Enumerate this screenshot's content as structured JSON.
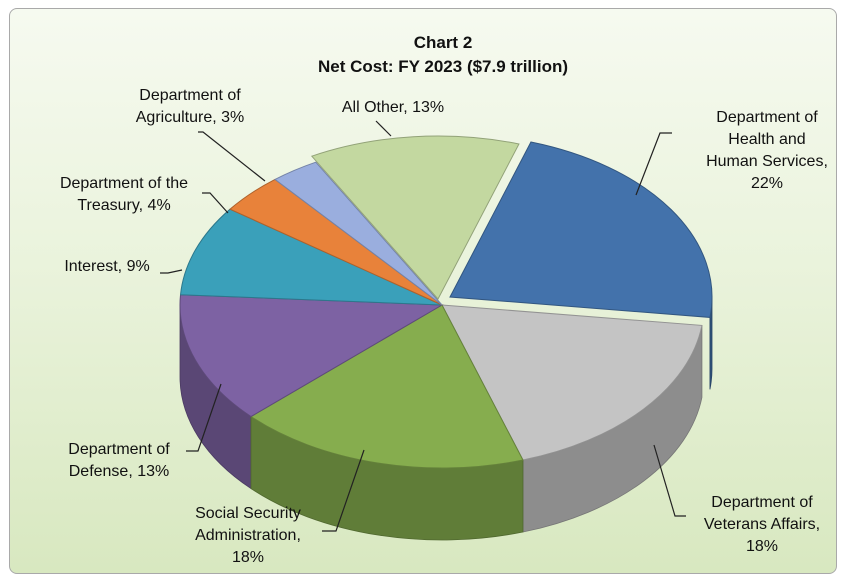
{
  "chart_data": {
    "type": "pie",
    "title": "Chart 2",
    "subtitle": "Net Cost: FY 2023 ($7.9 trillion)",
    "slices": [
      {
        "name": "Department of Health and Human Services",
        "label_lines": [
          "Department of",
          "Health and",
          "Human Services,",
          "22%"
        ],
        "value": 22,
        "color": "#4372ab"
      },
      {
        "name": "Department of Veterans Affairs",
        "label_lines": [
          "Department of",
          "Veterans Affairs,",
          "18%"
        ],
        "value": 18,
        "color": "#c4c4c4"
      },
      {
        "name": "Social Security Administration",
        "label_lines": [
          "Social Security",
          "Administration,",
          "18%"
        ],
        "value": 18,
        "color": "#86ad4e"
      },
      {
        "name": "Department of Defense",
        "label_lines": [
          "Department of",
          "Defense, 13%"
        ],
        "value": 13,
        "color": "#7d62a3"
      },
      {
        "name": "Interest",
        "label_lines": [
          "Interest, 9%"
        ],
        "value": 9,
        "color": "#3aa0ba"
      },
      {
        "name": "Department of the Treasury",
        "label_lines": [
          "Department of the",
          "Treasury, 4%"
        ],
        "value": 4,
        "color": "#e8823a"
      },
      {
        "name": "Department of Agriculture",
        "label_lines": [
          "Department of",
          "Agriculture, 3%"
        ],
        "value": 3,
        "color": "#9aaede"
      },
      {
        "name": "All Other",
        "label_lines": [
          "All Other, 13%"
        ],
        "value": 13,
        "color": "#c3d8a0"
      }
    ]
  }
}
